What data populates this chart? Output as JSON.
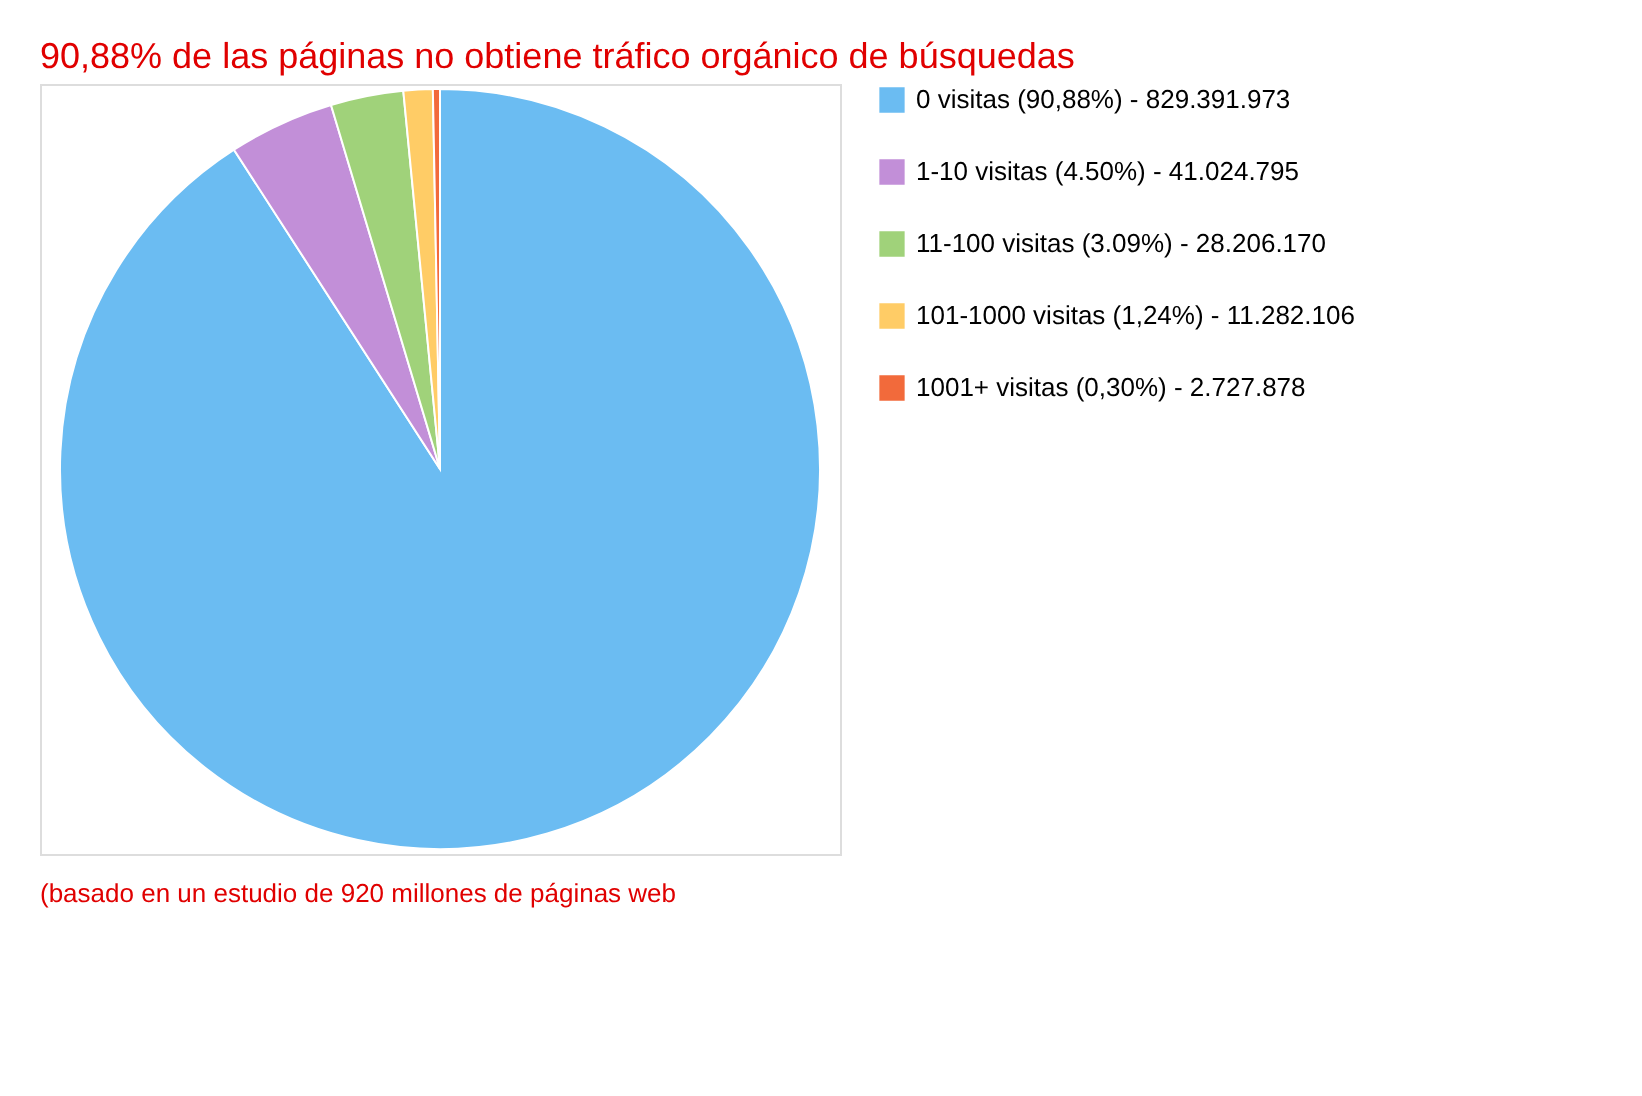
{
  "chart_data": {
    "type": "pie",
    "title": "90,88% de las páginas no obtiene tráfico orgánico de búsquedas",
    "categories": [
      "0 visitas (90,88%) - 829.391.973",
      "1-10 visitas (4.50%) - 41.024.795",
      "11-100 visitas (3.09%) - 28.206.170",
      "101-1000 visitas (1,24%) - 11.282.106",
      "1001+ visitas (0,30%) - 2.727.878"
    ],
    "values": [
      90.88,
      4.49,
      3.09,
      1.24,
      0.3
    ],
    "colors": [
      "#6bbcf2",
      "#c28fd8",
      "#a0d27a",
      "#ffcc66",
      "#f26a3b"
    ],
    "legend": "right",
    "annotations": [
      "(basado en un estudio de 920 millones de páginas web"
    ]
  }
}
